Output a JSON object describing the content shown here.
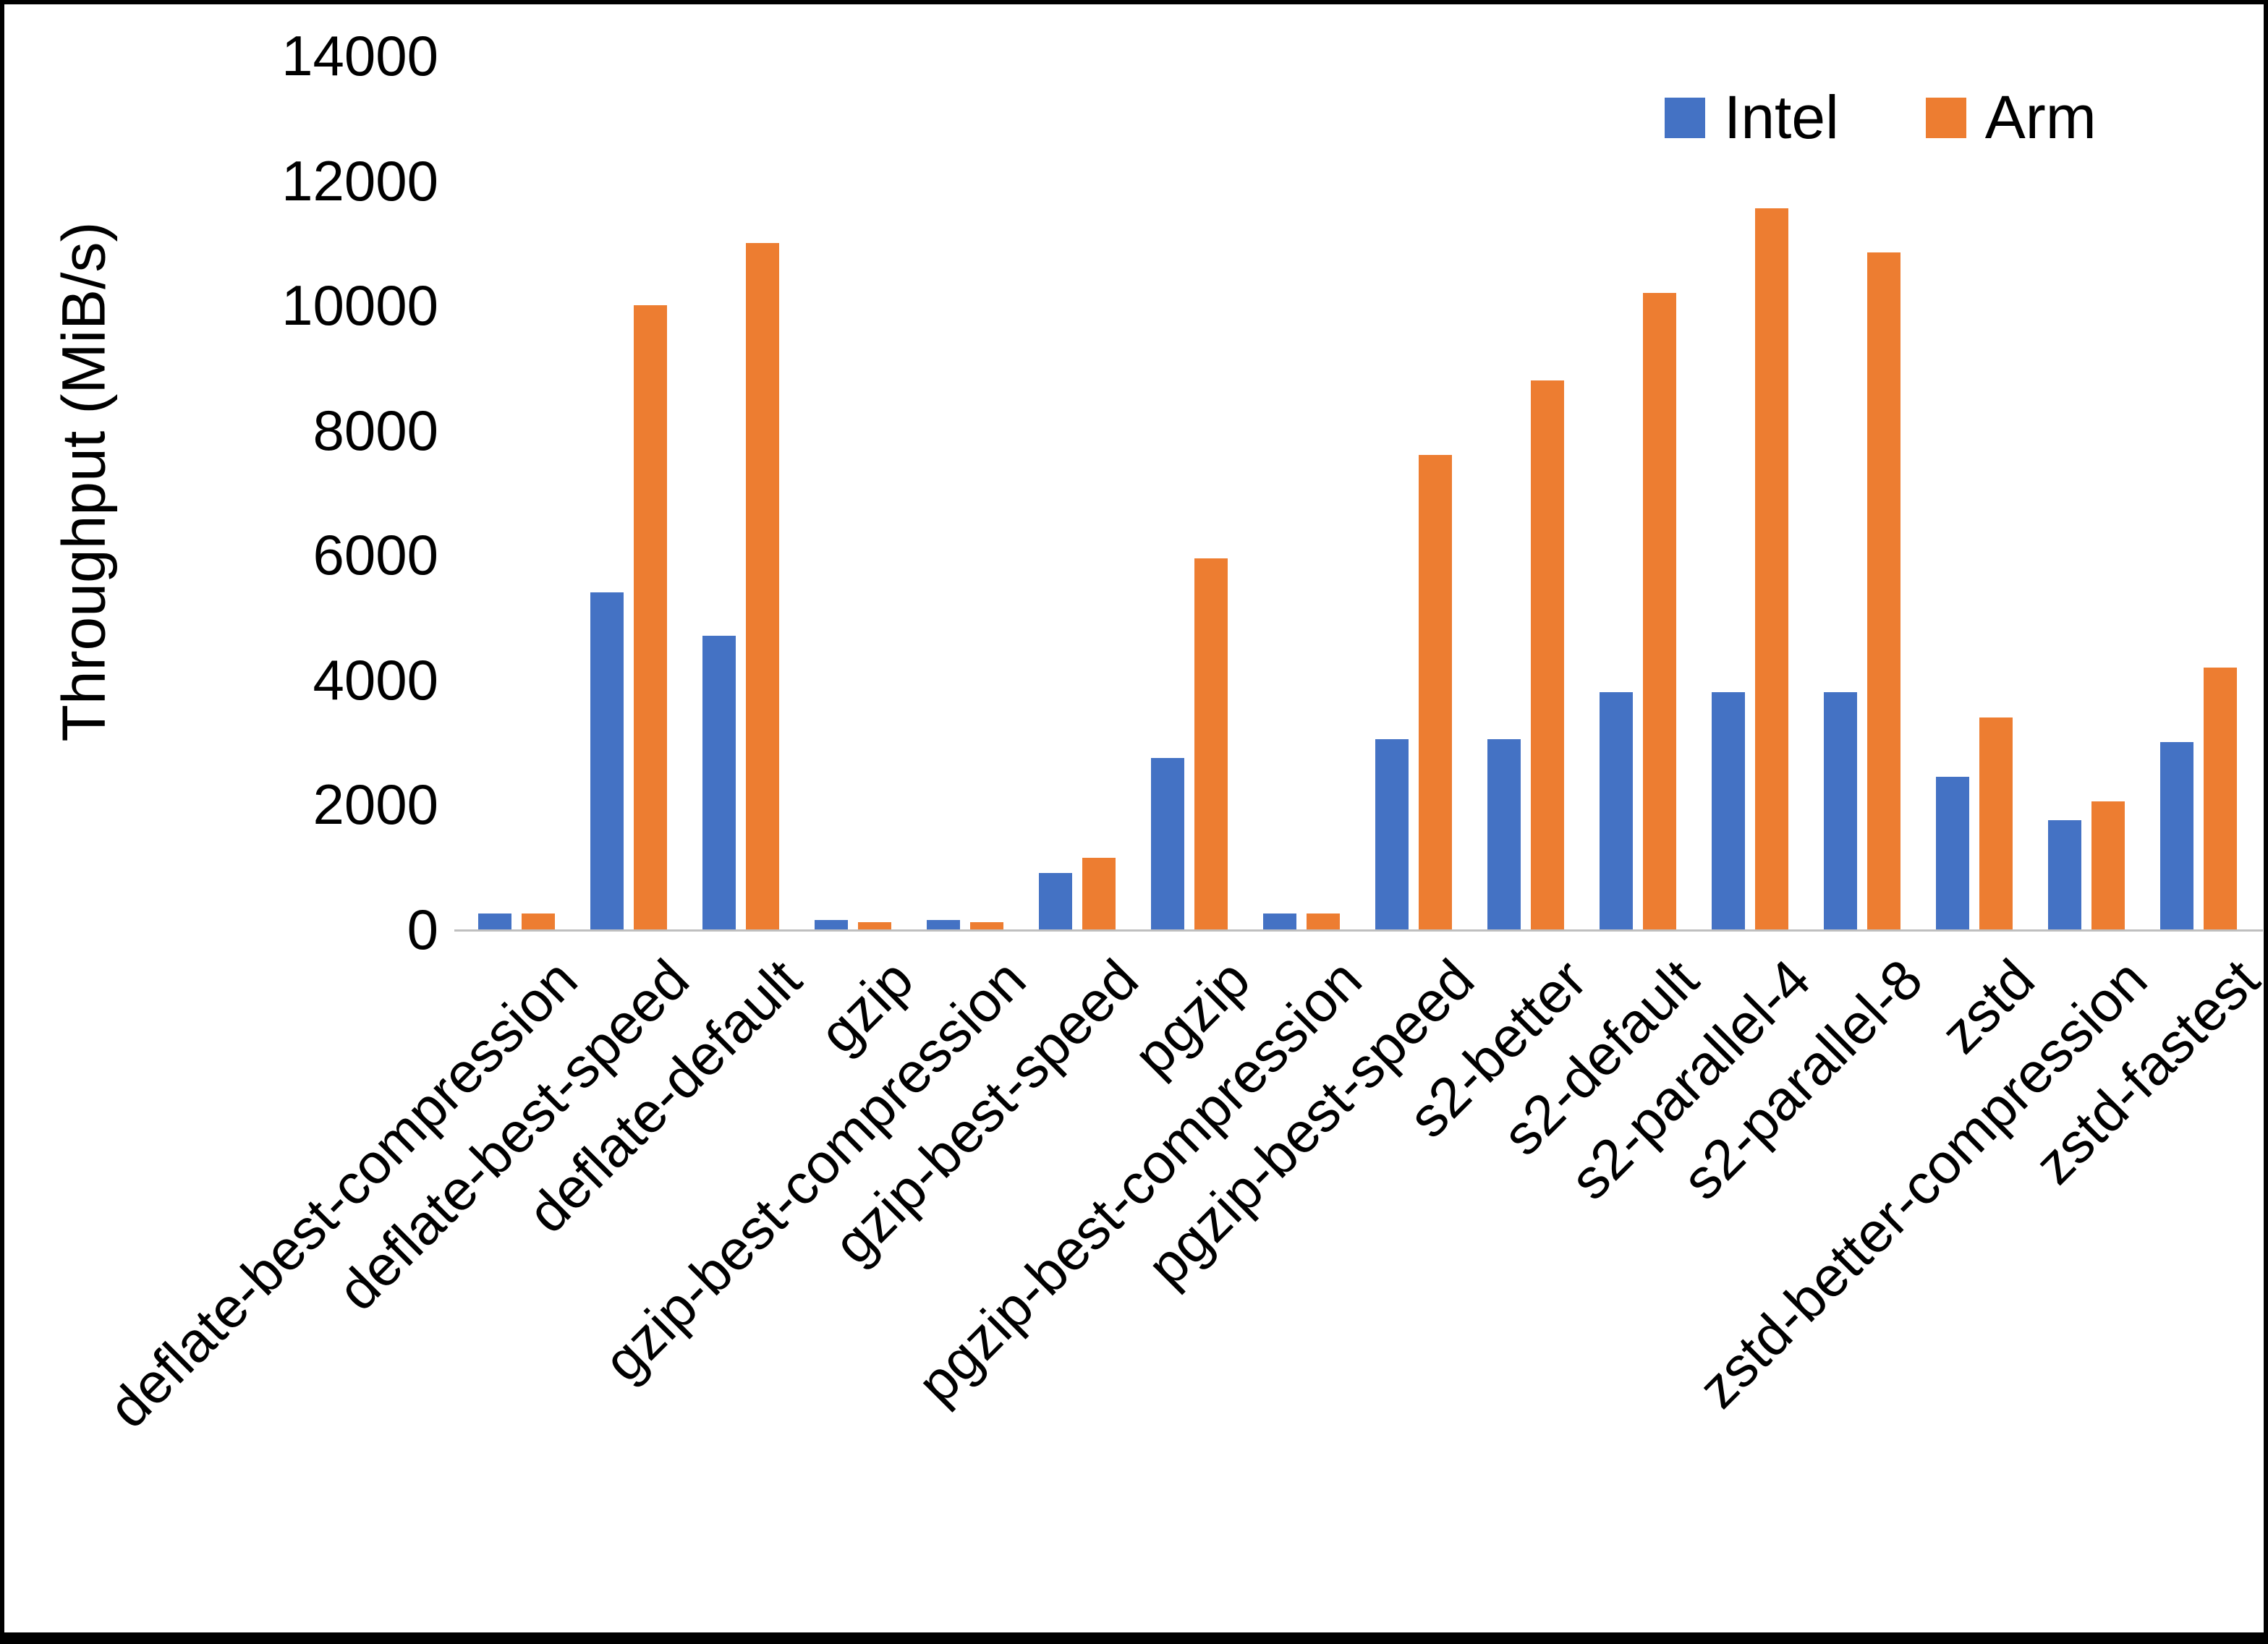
{
  "chart_data": {
    "type": "bar",
    "title": "",
    "xlabel": "",
    "ylabel": "Throughput (MiB/s)",
    "ylim": [
      0,
      14000
    ],
    "ytick_interval": 2000,
    "yticks": [
      "0",
      "2000",
      "4000",
      "6000",
      "8000",
      "10000",
      "12000",
      "14000"
    ],
    "grid": false,
    "legend_position": "top-right",
    "categories": [
      "deflate-best-compression",
      "deflate-best-speed",
      "deflate-default",
      "gzip",
      "gzip-best-compression",
      "gzip-best-speed",
      "pgzip",
      "pgzip-best-compression",
      "pgzip-best-speed",
      "s2-better",
      "s2-default",
      "s2-parallel-4",
      "s2-parallel-8",
      "zstd",
      "zstd-better-compression",
      "zstd-fastest"
    ],
    "series": [
      {
        "name": "Intel",
        "color": "#4472C4",
        "values": [
          250,
          5400,
          4700,
          150,
          150,
          900,
          2750,
          250,
          3050,
          3050,
          3800,
          3800,
          3800,
          2450,
          1750,
          3000
        ]
      },
      {
        "name": "Arm",
        "color": "#ED7D31",
        "values": [
          250,
          10000,
          11000,
          120,
          120,
          1150,
          5950,
          250,
          7600,
          8800,
          10200,
          11550,
          10850,
          3400,
          2050,
          4200
        ]
      }
    ]
  },
  "colors": {
    "axis_line": "#bfbfbf",
    "text": "#000000"
  }
}
